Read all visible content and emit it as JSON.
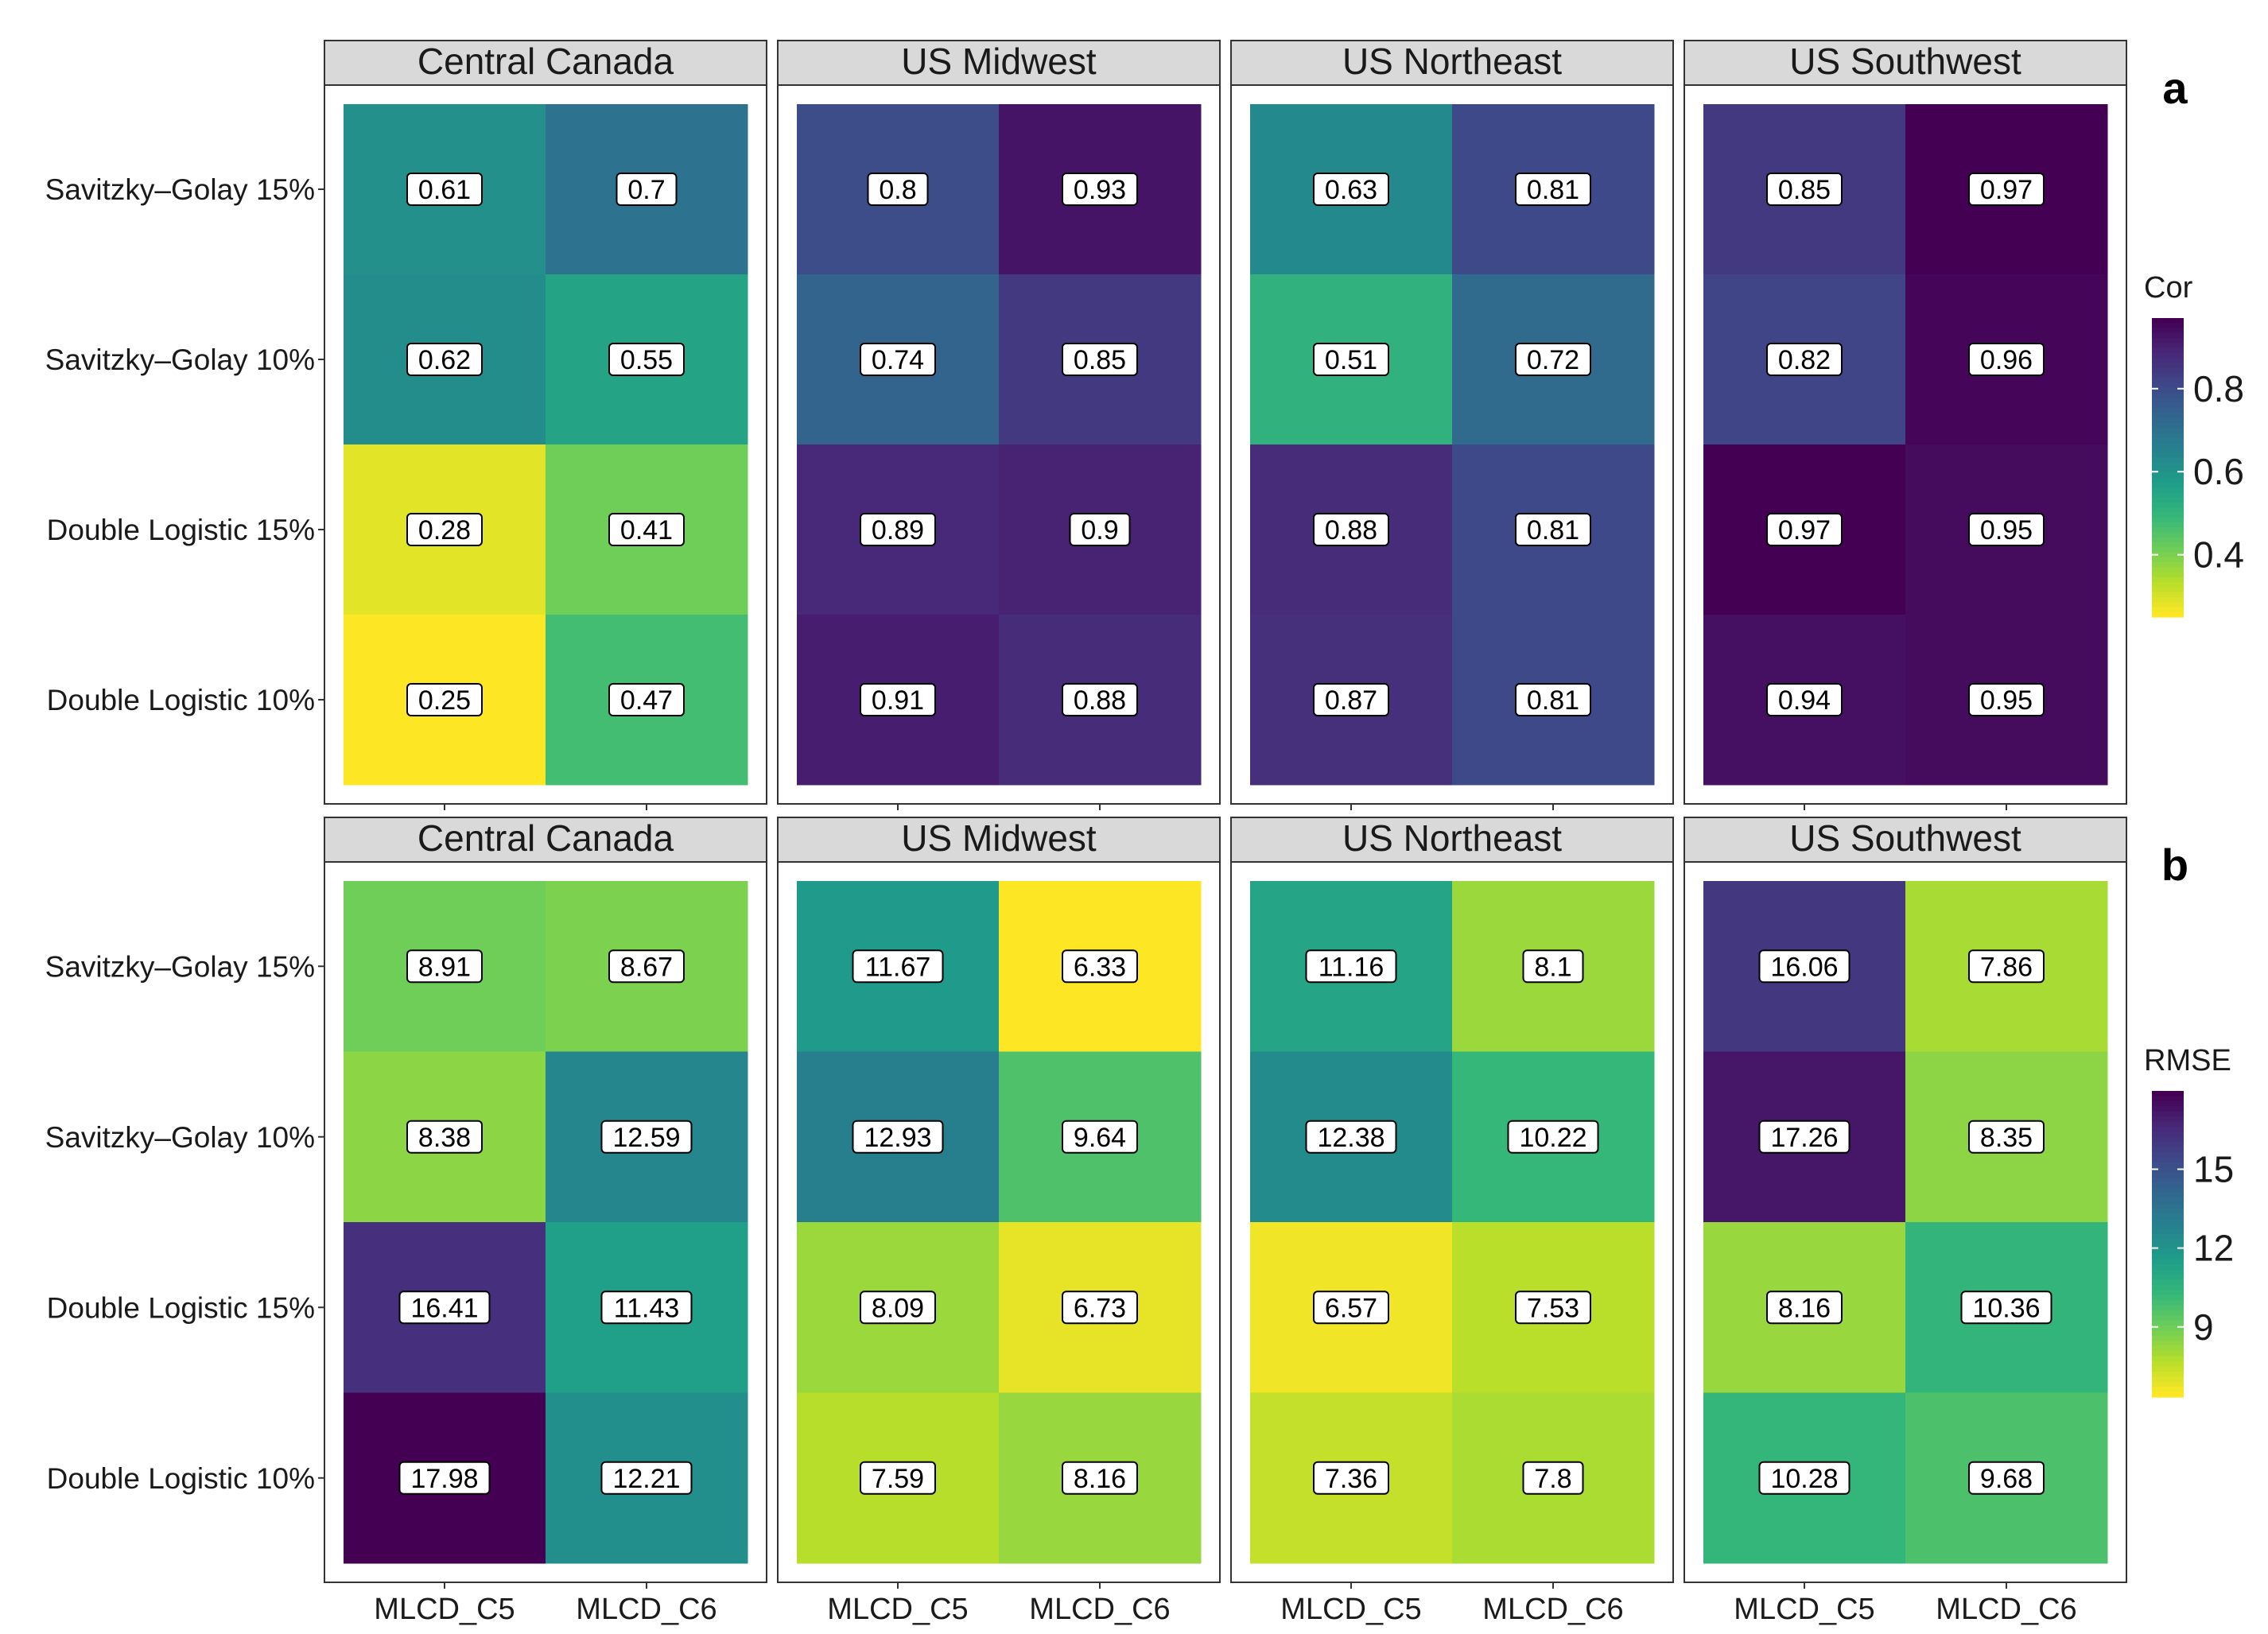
{
  "figure": {
    "row_labels": [
      "Savitzky–Golay 15%",
      "Savitzky–Golay 10%",
      "Double Logistic 15%",
      "Double Logistic 10%"
    ],
    "col_labels": [
      "MLCD_C5",
      "MLCD_C6"
    ],
    "regions": [
      "Central Canada",
      "US Midwest",
      "US Northeast",
      "US Southwest"
    ]
  },
  "chart_data": [
    {
      "type": "heatmap",
      "panel_letter": "a",
      "metric": "Cor",
      "legend_title": "Cor",
      "legend_ticks": [
        "0.4",
        "0.6",
        "0.8"
      ],
      "legend_range": [
        0.25,
        0.97
      ],
      "facets": [
        {
          "region": "Central Canada",
          "values": [
            [
              0.61,
              0.7
            ],
            [
              0.62,
              0.55
            ],
            [
              0.28,
              0.41
            ],
            [
              0.25,
              0.47
            ]
          ],
          "labels": [
            [
              "0.61",
              "0.7"
            ],
            [
              "0.62",
              "0.55"
            ],
            [
              "0.28",
              "0.41"
            ],
            [
              "0.25",
              "0.47"
            ]
          ]
        },
        {
          "region": "US Midwest",
          "values": [
            [
              0.8,
              0.93
            ],
            [
              0.74,
              0.85
            ],
            [
              0.89,
              0.9
            ],
            [
              0.91,
              0.88
            ]
          ],
          "labels": [
            [
              "0.8",
              "0.93"
            ],
            [
              "0.74",
              "0.85"
            ],
            [
              "0.89",
              "0.9"
            ],
            [
              "0.91",
              "0.88"
            ]
          ]
        },
        {
          "region": "US Northeast",
          "values": [
            [
              0.63,
              0.81
            ],
            [
              0.51,
              0.72
            ],
            [
              0.88,
              0.81
            ],
            [
              0.87,
              0.81
            ]
          ],
          "labels": [
            [
              "0.63",
              "0.81"
            ],
            [
              "0.51",
              "0.72"
            ],
            [
              "0.88",
              "0.81"
            ],
            [
              "0.87",
              "0.81"
            ]
          ]
        },
        {
          "region": "US Southwest",
          "values": [
            [
              0.85,
              0.97
            ],
            [
              0.82,
              0.96
            ],
            [
              0.97,
              0.95
            ],
            [
              0.94,
              0.95
            ]
          ],
          "labels": [
            [
              "0.85",
              "0.97"
            ],
            [
              "0.82",
              "0.96"
            ],
            [
              "0.97",
              "0.95"
            ],
            [
              "0.94",
              "0.95"
            ]
          ]
        }
      ]
    },
    {
      "type": "heatmap",
      "panel_letter": "b",
      "metric": "RMSE",
      "legend_title": "RMSE",
      "legend_ticks": [
        "9",
        "12",
        "15"
      ],
      "legend_range": [
        6.33,
        17.98
      ],
      "facets": [
        {
          "region": "Central Canada",
          "values": [
            [
              8.91,
              8.67
            ],
            [
              8.38,
              12.59
            ],
            [
              16.41,
              11.43
            ],
            [
              17.98,
              12.21
            ]
          ],
          "labels": [
            [
              "8.91",
              "8.67"
            ],
            [
              "8.38",
              "12.59"
            ],
            [
              "16.41",
              "11.43"
            ],
            [
              "17.98",
              "12.21"
            ]
          ]
        },
        {
          "region": "US Midwest",
          "values": [
            [
              11.67,
              6.33
            ],
            [
              12.93,
              9.64
            ],
            [
              8.09,
              6.73
            ],
            [
              7.59,
              8.16
            ]
          ],
          "labels": [
            [
              "11.67",
              "6.33"
            ],
            [
              "12.93",
              "9.64"
            ],
            [
              "8.09",
              "6.73"
            ],
            [
              "7.59",
              "8.16"
            ]
          ]
        },
        {
          "region": "US Northeast",
          "values": [
            [
              11.16,
              8.1
            ],
            [
              12.38,
              10.22
            ],
            [
              6.57,
              7.53
            ],
            [
              7.36,
              7.8
            ]
          ],
          "labels": [
            [
              "11.16",
              "8.1"
            ],
            [
              "12.38",
              "10.22"
            ],
            [
              "6.57",
              "7.53"
            ],
            [
              "7.36",
              "7.8"
            ]
          ]
        },
        {
          "region": "US Southwest",
          "values": [
            [
              16.06,
              7.86
            ],
            [
              17.26,
              8.35
            ],
            [
              8.16,
              10.36
            ],
            [
              10.28,
              9.68
            ]
          ],
          "labels": [
            [
              "16.06",
              "7.86"
            ],
            [
              "17.26",
              "8.35"
            ],
            [
              "8.16",
              "10.36"
            ],
            [
              "10.28",
              "9.68"
            ]
          ]
        }
      ]
    }
  ]
}
